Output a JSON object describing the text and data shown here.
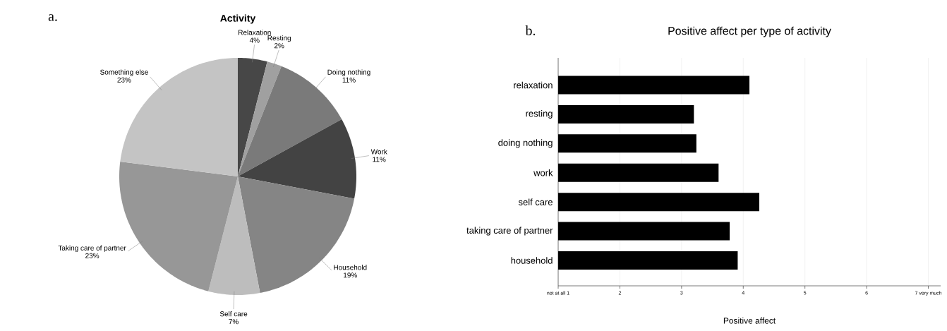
{
  "chart_data": [
    {
      "type": "pie",
      "title": "Activity",
      "annotations": [
        "a."
      ],
      "categories": [
        "Relaxation",
        "Resting",
        "Doing nothing",
        "Work",
        "Household",
        "Self care",
        "Taking care of partner",
        "Something else"
      ],
      "values": [
        4,
        2,
        11,
        11,
        19,
        7,
        23,
        23
      ],
      "value_labels": [
        "4%",
        "2%",
        "11%",
        "11%",
        "19%",
        "7%",
        "23%",
        "23%"
      ],
      "colors": [
        "#474747",
        "#a0a0a0",
        "#7a7a7a",
        "#434343",
        "#858585",
        "#bdbdbd",
        "#979797",
        "#c4c4c4"
      ]
    },
    {
      "type": "bar",
      "orientation": "horizontal",
      "title": "Positive affect per type of activity",
      "xlabel": "Positive affect",
      "annotations": [
        "b."
      ],
      "categories": [
        "relaxation",
        "resting",
        "doing nothing",
        "work",
        "self care",
        "taking care of partner",
        "household"
      ],
      "values": [
        4.1,
        3.2,
        3.24,
        3.6,
        4.26,
        3.78,
        3.91
      ],
      "color": "#000000",
      "xlim": [
        1,
        7.2
      ],
      "xticks": [
        {
          "value": 1,
          "label": "not at all  1"
        },
        2,
        3,
        4,
        5,
        6,
        {
          "value": 7,
          "label": "7  very much"
        }
      ],
      "grid": "x"
    }
  ]
}
